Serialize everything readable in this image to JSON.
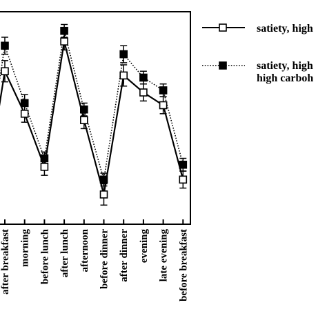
{
  "chart_data": {
    "type": "line",
    "title": "",
    "xlabel": "",
    "ylabel": "",
    "ylim": [
      0,
      100
    ],
    "grid": false,
    "legend_placement": "right",
    "categories": [
      "after breakfast",
      "morning",
      "before lunch",
      "after lunch",
      "afternoon",
      "before dinner",
      "after dinner",
      "evening",
      "late evening",
      "before breakfast"
    ],
    "series": [
      {
        "name": "satiety, high",
        "marker": "open-square",
        "line_style": "solid",
        "color": "#000000",
        "values": [
          72,
          52,
          27,
          86,
          49,
          14,
          70,
          62,
          56,
          21
        ],
        "errors": [
          5,
          4,
          4,
          4,
          4,
          5,
          5,
          4,
          4,
          4
        ]
      },
      {
        "name": "satiety, high high carbohy",
        "legend_lines": [
          "satiety, high",
          "high carboh"
        ],
        "marker": "filled-square",
        "line_style": "dotted",
        "color": "#000000",
        "values": [
          84,
          57,
          31,
          91,
          54,
          21,
          80,
          69,
          63,
          28
        ],
        "errors": [
          4,
          4,
          3,
          3,
          3,
          3,
          4,
          3,
          3,
          3
        ]
      }
    ]
  }
}
